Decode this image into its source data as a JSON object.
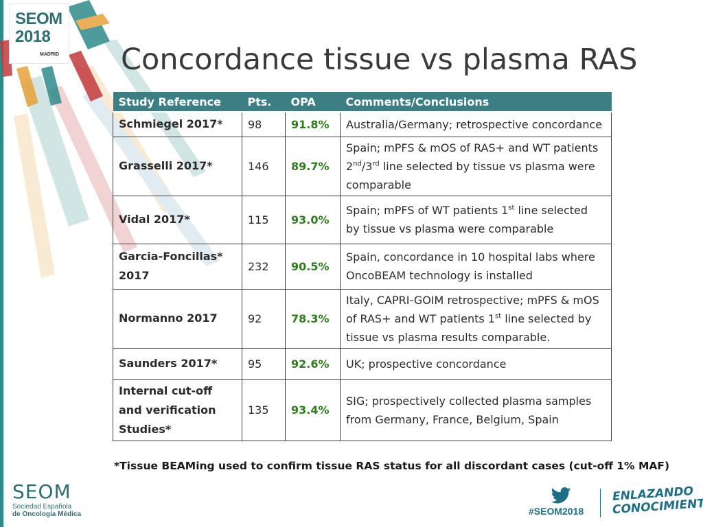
{
  "logo": {
    "line1": "SEOM",
    "line2": "2018",
    "line3": "MADRID"
  },
  "title": "Concordance tissue vs plasma RAS",
  "table": {
    "headers": [
      "Study Reference",
      "Pts.",
      "OPA",
      "Comments/Conclusions"
    ],
    "rows": [
      {
        "ref": "Schmiegel 2017*",
        "pts": "98",
        "opa": "91.8%",
        "comment": [
          "Australia/Germany; retrospective concordance"
        ]
      },
      {
        "ref": "Grasselli 2017*",
        "pts": "146",
        "opa": "89.7%",
        "comment": [
          "Spain; mPFS & mOS of RAS+ and WT patients",
          "2nd/3rd line selected by tissue vs plasma were",
          "comparable"
        ]
      },
      {
        "ref": "Vidal 2017*",
        "pts": "115",
        "opa": "93.0%",
        "comment": [
          "Spain; mPFS of WT patients 1st line selected",
          "by tissue vs plasma were comparable"
        ]
      },
      {
        "ref": "Garcia-Foncillas* 2017",
        "pts": "232",
        "opa": "90.5%",
        "comment": [
          "Spain, concordance in 10 hospital labs where",
          "OncoBEAM technology is installed"
        ]
      },
      {
        "ref": "Normanno 2017",
        "pts": "92",
        "opa": "78.3%",
        "comment": [
          "Italy, CAPRI-GOIM retrospective; mPFS & mOS",
          "of RAS+ and WT patients 1st line selected by",
          "tissue vs plasma results comparable."
        ]
      },
      {
        "ref": "Saunders 2017*",
        "pts": "95",
        "opa": "92.6%",
        "comment": [
          "UK; prospective concordance"
        ]
      },
      {
        "ref": "Internal cut-off and verification Studies*",
        "pts": "135",
        "opa": "93.4%",
        "comment": [
          "SIG; prospectively collected plasma samples",
          "from Germany, France, Belgium, Spain"
        ]
      }
    ]
  },
  "footnote": "*Tissue BEAMing used to confirm tissue RAS status for all discordant cases (cut-off 1% MAF)",
  "footer": {
    "seom": "SEOM",
    "seom_sub1": "Sociedad Española",
    "seom_sub2": "de Oncología Médica",
    "hashtag": "#SEOM2018",
    "slogan1": "ENLAZANDO",
    "slogan2": "CONOCIMIENTO",
    "icons": [
      "twitter-icon"
    ]
  },
  "colors": {
    "accent": "#3b7f85",
    "opa_green": "#2e7d1c"
  }
}
